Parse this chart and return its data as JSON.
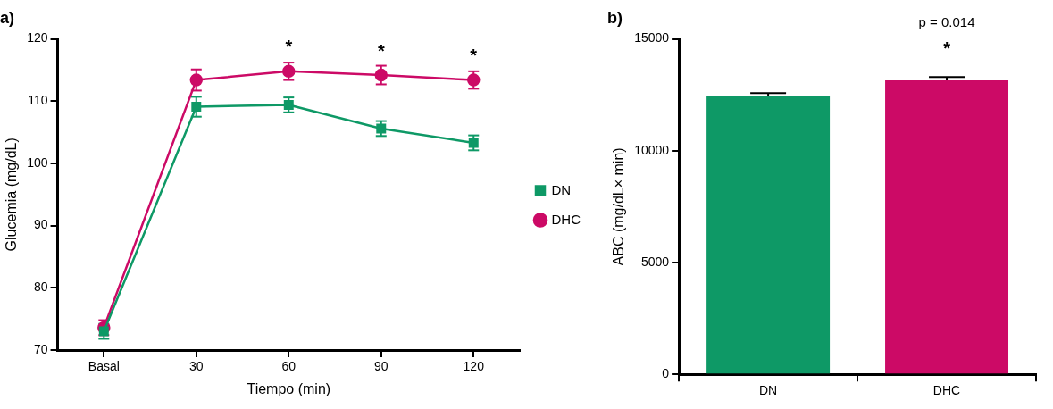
{
  "chart_data": [
    {
      "type": "line",
      "title": "a)",
      "xlabel": "Tiempo (min)",
      "ylabel": "Glucemia (mg/dL)",
      "categories": [
        "Basal",
        "30",
        "60",
        "90",
        "120"
      ],
      "series": [
        {
          "name": "DN",
          "color": "#0e9966",
          "marker": "square",
          "values": [
            73,
            109.1,
            109.4,
            105.6,
            103.3
          ],
          "errors": [
            1.2,
            1.6,
            1.2,
            1.2,
            1.2
          ]
        },
        {
          "name": "DHC",
          "color": "#cc0a66",
          "marker": "circle",
          "values": [
            73.6,
            113.4,
            114.8,
            114.2,
            113.4
          ],
          "errors": [
            1.2,
            1.7,
            1.4,
            1.5,
            1.4
          ]
        }
      ],
      "ylim": [
        70,
        120
      ],
      "yticks": [
        70,
        80,
        90,
        100,
        110,
        120
      ],
      "grid": false,
      "legend": "right",
      "annotations": [
        {
          "text": "*",
          "x": "60",
          "y": 114.8
        },
        {
          "text": "*",
          "x": "90",
          "y": 114.2
        },
        {
          "text": "*",
          "x": "120",
          "y": 113.4
        }
      ]
    },
    {
      "type": "bar",
      "title": "b)",
      "ylabel": "ABC (mg/dL× min)",
      "categories": [
        "DN",
        "DHC"
      ],
      "values": [
        12450,
        13150
      ],
      "colors": [
        "#0e9966",
        "#cc0a66"
      ],
      "errors": [
        125,
        150
      ],
      "ylim": [
        0,
        15000
      ],
      "yticks": [
        0,
        5000,
        10000,
        15000
      ],
      "grid": false,
      "annotations": [
        "p = 0.014",
        "*"
      ]
    }
  ]
}
